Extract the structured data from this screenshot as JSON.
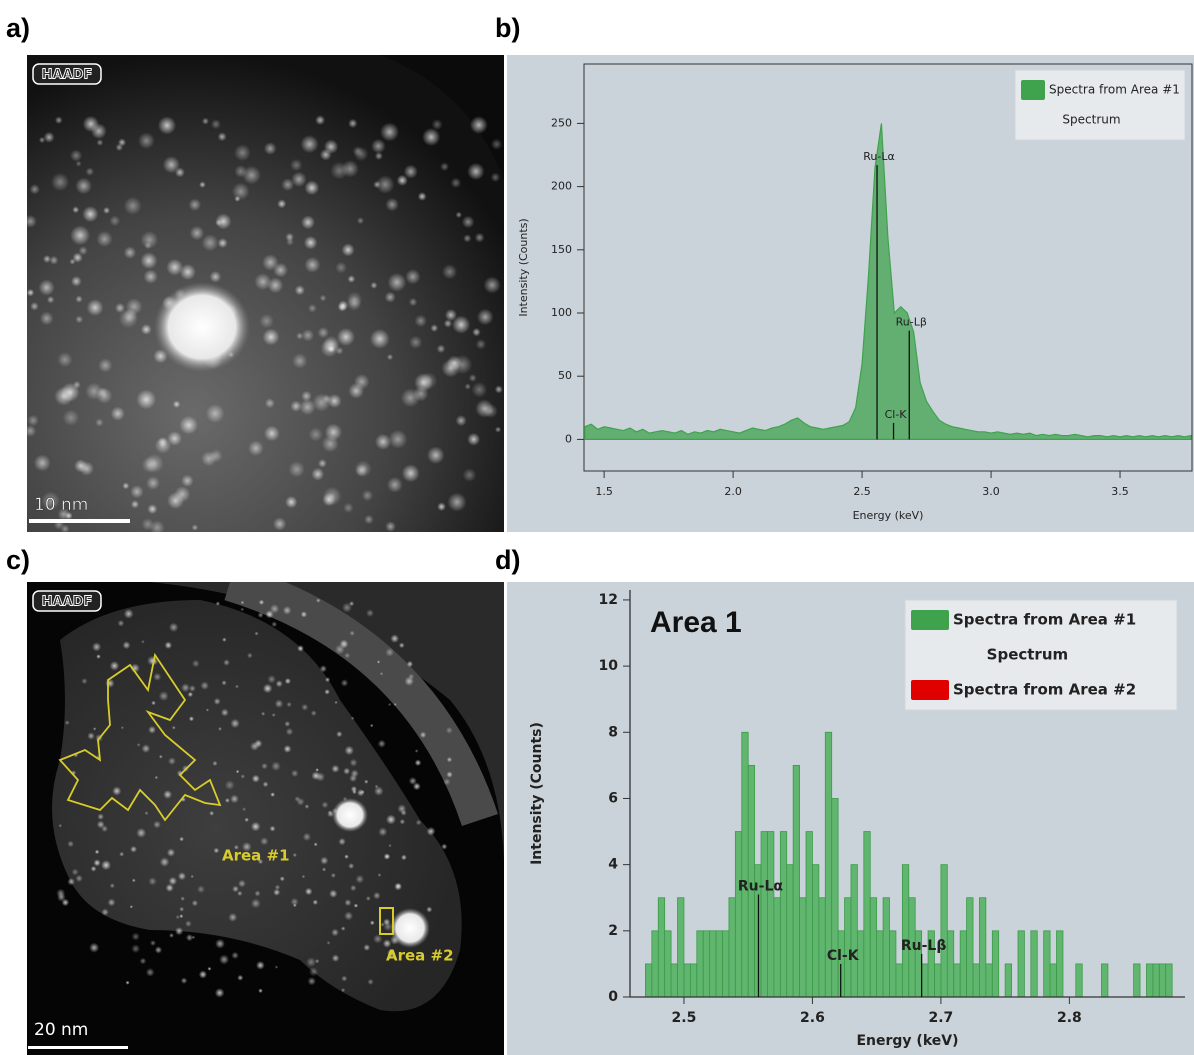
{
  "panel_labels": [
    "a)",
    "b)",
    "c)",
    "d)"
  ],
  "images": [
    {
      "badge": "HAADF",
      "scale_bar": "10 nm"
    },
    {
      "badge": "HAADF",
      "scale_bar": "20 nm",
      "regions": [
        "Area #1",
        "Area #2"
      ]
    }
  ],
  "chart_data": [
    {
      "type": "area",
      "xlabel": "Energy (keV)",
      "ylabel": "Intensity (Counts)",
      "color": "#3fa34d",
      "x": [
        1.425,
        1.45,
        1.475,
        1.5,
        1.525,
        1.55,
        1.575,
        1.6,
        1.625,
        1.65,
        1.675,
        1.7,
        1.725,
        1.75,
        1.775,
        1.8,
        1.825,
        1.85,
        1.875,
        1.9,
        1.925,
        1.95,
        1.975,
        2.0,
        2.025,
        2.05,
        2.075,
        2.1,
        2.125,
        2.15,
        2.175,
        2.2,
        2.225,
        2.25,
        2.275,
        2.3,
        2.325,
        2.35,
        2.375,
        2.4,
        2.425,
        2.45,
        2.475,
        2.5,
        2.525,
        2.55,
        2.575,
        2.6,
        2.625,
        2.65,
        2.675,
        2.7,
        2.725,
        2.75,
        2.775,
        2.8,
        2.825,
        2.85,
        2.875,
        2.9,
        2.925,
        2.95,
        2.975,
        3.0,
        3.025,
        3.05,
        3.075,
        3.1,
        3.125,
        3.15,
        3.175,
        3.2,
        3.225,
        3.25,
        3.275,
        3.3,
        3.325,
        3.35,
        3.375,
        3.4,
        3.425,
        3.45,
        3.475,
        3.5,
        3.525,
        3.55,
        3.575,
        3.6,
        3.625,
        3.65,
        3.675,
        3.7,
        3.725,
        3.75,
        3.775
      ],
      "values": [
        10,
        12,
        8,
        10,
        9,
        8,
        7,
        9,
        6,
        8,
        5,
        6,
        7,
        6,
        5,
        7,
        4,
        6,
        5,
        7,
        6,
        8,
        7,
        6,
        5,
        7,
        9,
        8,
        7,
        9,
        10,
        12,
        15,
        17,
        13,
        10,
        9,
        8,
        9,
        10,
        11,
        14,
        25,
        60,
        130,
        215,
        250,
        160,
        100,
        105,
        100,
        85,
        45,
        30,
        22,
        15,
        12,
        10,
        9,
        8,
        7,
        6,
        6,
        5,
        6,
        5,
        4,
        5,
        4,
        5,
        3,
        4,
        3,
        4,
        3,
        3,
        4,
        3,
        2,
        3,
        3,
        2,
        3,
        2,
        3,
        2,
        3,
        2,
        3,
        2,
        3,
        2,
        3,
        2,
        3
      ],
      "xlim": [
        1.422,
        3.779
      ],
      "ylim": [
        -25,
        297
      ],
      "xticks": [
        1.5,
        {
          "value": 2,
          "label": "2.0"
        },
        2.5,
        {
          "value": 3,
          "label": "3.0"
        },
        3.5
      ],
      "yticks": [
        0,
        50,
        100,
        150,
        200,
        250
      ],
      "legend": [
        {
          "label": "Spectra from Area #1",
          "color": "#3fa34d"
        },
        {
          "label": "Spectrum"
        }
      ],
      "markers": [
        {
          "label": "Ru-Lα",
          "x": 2.558,
          "height": 217
        },
        {
          "label": "Cl-K",
          "x": 2.622,
          "height": 13
        },
        {
          "label": "Ru-Lβ",
          "x": 2.683,
          "height": 86
        }
      ]
    },
    {
      "type": "histogram",
      "title": "Area 1",
      "xlabel": "Energy (keV)",
      "ylabel": "Intensity (Counts)",
      "color": "#4fb05c",
      "bins": [
        2.47,
        2.475,
        2.48,
        2.485,
        2.49,
        2.495,
        2.5,
        2.505,
        2.51,
        2.515,
        2.52,
        2.525,
        2.53,
        2.535,
        2.54,
        2.545,
        2.55,
        2.555,
        2.56,
        2.565,
        2.57,
        2.575,
        2.58,
        2.585,
        2.59,
        2.595,
        2.6,
        2.605,
        2.61,
        2.615,
        2.62,
        2.625,
        2.63,
        2.635,
        2.64,
        2.645,
        2.65,
        2.655,
        2.66,
        2.665,
        2.67,
        2.675,
        2.68,
        2.685,
        2.69,
        2.695,
        2.7,
        2.705,
        2.71,
        2.715,
        2.72,
        2.725,
        2.73,
        2.735,
        2.74,
        2.745,
        2.75,
        2.755,
        2.76,
        2.765,
        2.77,
        2.775,
        2.78,
        2.785,
        2.79,
        2.795,
        2.8,
        2.805,
        2.81,
        2.815,
        2.82,
        2.825,
        2.83,
        2.835,
        2.84,
        2.845,
        2.85,
        2.855,
        2.86,
        2.865,
        2.87,
        2.875,
        2.88
      ],
      "values": [
        1,
        2,
        3,
        2,
        1,
        3,
        1,
        1,
        2,
        2,
        2,
        2,
        2,
        3,
        5,
        8,
        7,
        4,
        5,
        5,
        3,
        5,
        4,
        7,
        3,
        5,
        4,
        3,
        8,
        6,
        2,
        3,
        4,
        2,
        5,
        3,
        2,
        3,
        2,
        1,
        4,
        3,
        2,
        1,
        2,
        1,
        4,
        2,
        1,
        2,
        3,
        1,
        3,
        1,
        2,
        0,
        1,
        0,
        2,
        0,
        2,
        0,
        2,
        1,
        2,
        0,
        0,
        1,
        0,
        0,
        0,
        1,
        0,
        0,
        0,
        0,
        1,
        0,
        1,
        1,
        1,
        1
      ],
      "xlim": [
        2.458,
        2.89
      ],
      "ylim": [
        0,
        12.3
      ],
      "xticks": [
        2.5,
        2.6,
        2.7,
        2.8
      ],
      "yticks": [
        0,
        2,
        4,
        6,
        8,
        10,
        12
      ],
      "legend": [
        {
          "label": "Spectra from Area #1",
          "color": "#3fa34d"
        },
        {
          "label": "Spectrum"
        },
        {
          "label": "Spectra from Area #2",
          "color": "#e00000"
        }
      ],
      "markers": [
        {
          "label": "Ru-Lα",
          "x": 2.558,
          "height": 3.1
        },
        {
          "label": "Cl-K",
          "x": 2.622,
          "height": 1.0
        },
        {
          "label": "Ru-Lβ",
          "x": 2.685,
          "height": 1.3
        }
      ]
    }
  ]
}
